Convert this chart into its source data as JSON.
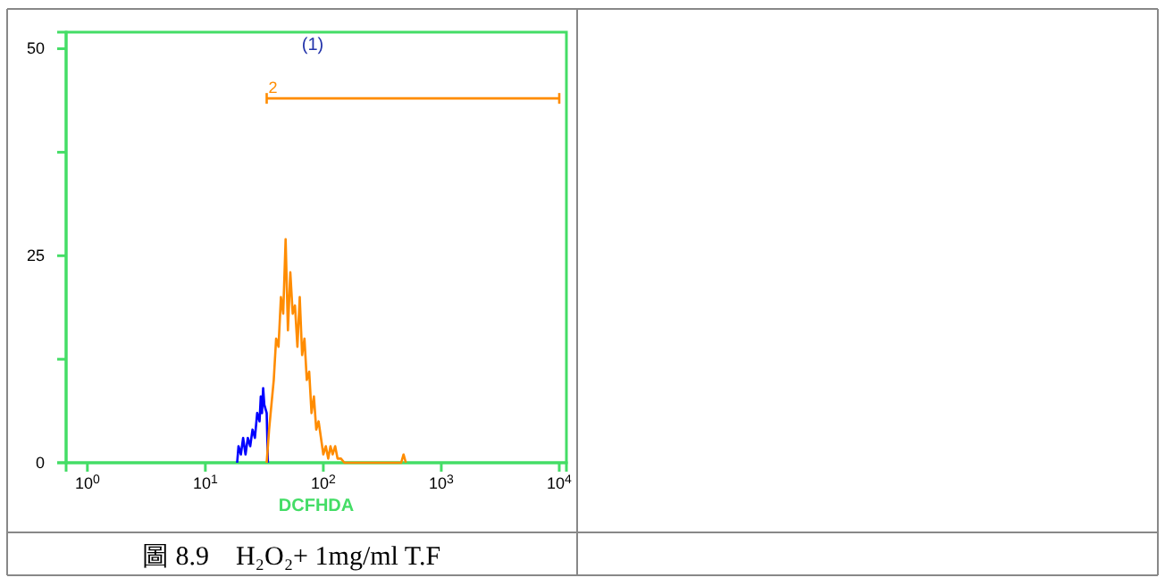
{
  "chart_data": {
    "type": "line",
    "xlabel": "DCFHDA",
    "log": "x",
    "xlim": [
      0.66,
      11500
    ],
    "ylim": [
      0,
      52
    ],
    "xticks": [
      {
        "value": 1,
        "label": "10$^{0}$"
      },
      {
        "value": 10,
        "label": "10$^{1}$"
      },
      {
        "value": 100,
        "label": "10$^{2}$"
      },
      {
        "value": 1000,
        "label": "10$^{3}$"
      },
      {
        "value": 10000,
        "label": "10$^{4}$"
      }
    ],
    "yticks": [
      0,
      {
        "value": 12.5,
        "label": null
      },
      25,
      {
        "value": 37.5,
        "label": null
      },
      50
    ],
    "grid": false,
    "marker": "none",
    "line_style": "solid",
    "series": [
      {
        "color": "#0000ff",
        "x": [
          18.6,
          19.1,
          20.0,
          20.9,
          21.9,
          22.9,
          24.0,
          25.1,
          26.3,
          27.5,
          28.8,
          29.5,
          30.2,
          30.9,
          31.6,
          33.1,
          33.9
        ],
        "values": [
          0,
          2,
          1,
          3,
          1,
          3,
          2,
          4,
          3,
          6,
          5,
          8,
          6,
          9,
          7,
          6,
          0
        ]
      },
      {
        "color": "#ff8c00",
        "x": [
          33.1,
          34.7,
          36.3,
          38.0,
          39.8,
          41.7,
          43.7,
          45.7,
          47.9,
          50.1,
          52.5,
          55.0,
          57.5,
          60.3,
          63.1,
          66.1,
          69.2,
          72.4,
          75.9,
          79.4,
          83.2,
          87.1,
          91.2,
          95.5,
          100,
          105,
          110,
          115,
          120,
          126,
          132,
          141,
          151,
          457,
          479,
          501
        ],
        "values": [
          0,
          4,
          7,
          10,
          15,
          14,
          20,
          18,
          27,
          16,
          23,
          18,
          19,
          14,
          20,
          13,
          15,
          10,
          11,
          6,
          8,
          4,
          5,
          3,
          1,
          2,
          0.5,
          2,
          1,
          2,
          0.5,
          0.5,
          0,
          0,
          1,
          0
        ]
      },
      {
        "color": "#ff8c00",
        "x": [
          33.1,
          10000
        ],
        "values": [
          44,
          44
        ]
      }
    ],
    "annotations": [
      {
        "text": "2",
        "x": 33.1,
        "y": 44
      },
      "(1)",
      "圖 8.9　H₂O₂+ 1mg/ml T.F"
    ]
  }
}
